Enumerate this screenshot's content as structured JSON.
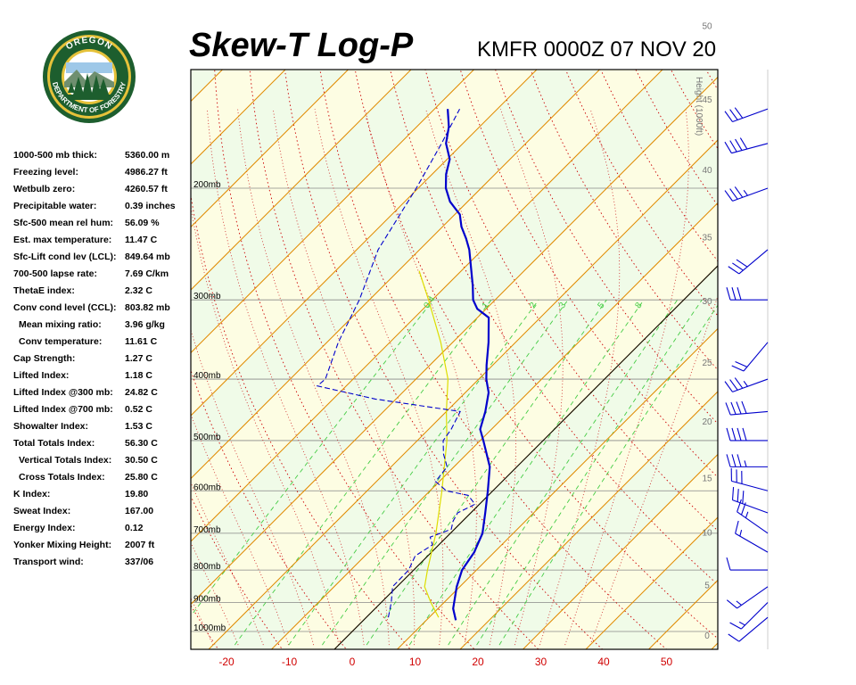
{
  "header": {
    "title": "Skew-T Log-P",
    "station": "KMFR 0000Z 07 NOV 20"
  },
  "logo": {
    "top_text": "OREGON",
    "bottom_text": "DEPARTMENT OF FORESTRY"
  },
  "indices": [
    {
      "label": "1000-500 mb thick:",
      "value": "5360.00 m",
      "indent": false
    },
    {
      "label": "Freezing level:",
      "value": "4986.27 ft",
      "indent": false
    },
    {
      "label": "Wetbulb zero:",
      "value": "4260.57 ft",
      "indent": false
    },
    {
      "label": "Precipitable water:",
      "value": "0.39 inches",
      "indent": false
    },
    {
      "label": "Sfc-500 mean rel hum:",
      "value": "56.09 %",
      "indent": false
    },
    {
      "label": "Est. max temperature:",
      "value": "11.47 C",
      "indent": false
    },
    {
      "label": "Sfc-Lift cond lev (LCL):",
      "value": "849.64 mb",
      "indent": false
    },
    {
      "label": "700-500 lapse rate:",
      "value": "7.69 C/km",
      "indent": false
    },
    {
      "label": "ThetaE index:",
      "value": "2.32 C",
      "indent": false
    },
    {
      "label": "Conv cond level (CCL):",
      "value": "803.82 mb",
      "indent": false
    },
    {
      "label": "Mean mixing ratio:",
      "value": "3.96 g/kg",
      "indent": true
    },
    {
      "label": "Conv temperature:",
      "value": "11.61 C",
      "indent": true
    },
    {
      "label": "Cap Strength:",
      "value": "1.27 C",
      "indent": false
    },
    {
      "label": "Lifted Index:",
      "value": "1.18 C",
      "indent": false
    },
    {
      "label": "Lifted Index @300 mb:",
      "value": "24.82 C",
      "indent": false
    },
    {
      "label": "Lifted Index @700 mb:",
      "value": "0.52 C",
      "indent": false
    },
    {
      "label": "Showalter Index:",
      "value": "1.53 C",
      "indent": false
    },
    {
      "label": "Total Totals Index:",
      "value": "56.30 C",
      "indent": false
    },
    {
      "label": "Vertical Totals Index:",
      "value": "30.50 C",
      "indent": true
    },
    {
      "label": "Cross Totals Index:",
      "value": "25.80 C",
      "indent": true
    },
    {
      "label": "K Index:",
      "value": "19.80",
      "indent": false
    },
    {
      "label": "Sweat Index:",
      "value": "167.00",
      "indent": false
    },
    {
      "label": "Energy Index:",
      "value": "0.12",
      "indent": false
    },
    {
      "label": "Yonker Mixing Height:",
      "value": "2007 ft",
      "indent": false
    },
    {
      "label": "Transport wind:",
      "value": "337/06",
      "indent": false
    }
  ],
  "chart_data": {
    "type": "line",
    "title": "Skew-T Log-P",
    "subtitle": "KMFR 0000Z 07 NOV 20",
    "xlim": [
      -25,
      59
    ],
    "x_ticks": [
      -20,
      -10,
      0,
      10,
      20,
      30,
      40,
      50
    ],
    "pressure_levels": [
      200,
      300,
      400,
      500,
      600,
      700,
      800,
      900,
      1000
    ],
    "pressure_labels": [
      "200mb",
      "300mb",
      "400mb",
      "500mb",
      "600mb",
      "700mb",
      "800mb",
      "900mb",
      "1000mb"
    ],
    "height_axis_label": "Height (1000ft)",
    "height_ticks": [
      "0",
      "5",
      "10",
      "15",
      "20",
      "25",
      "30",
      "35",
      "40",
      "45",
      "50"
    ],
    "mixing_ratio_labels": [
      "0.4",
      "1",
      "2",
      "3",
      "5",
      "8"
    ],
    "colors": {
      "temperature": "#0000cc",
      "dewpoint": "#0000cc",
      "parcel": "#dddd00",
      "isotherm": "#e08a00",
      "dry_adiabat": "#cc0000",
      "moist_adiabat": "#000000",
      "mixing_ratio": "#44cc44",
      "isobar": "#888888",
      "freezing_line": "#000000"
    },
    "series": [
      {
        "name": "Temperature",
        "points": [
          {
            "p": 960,
            "t": 14.7
          },
          {
            "p": 920,
            "t": 12.4
          },
          {
            "p": 850,
            "t": 9.5
          },
          {
            "p": 800,
            "t": 7.7
          },
          {
            "p": 750,
            "t": 6.8
          },
          {
            "p": 700,
            "t": 5.1
          },
          {
            "p": 650,
            "t": 2.3
          },
          {
            "p": 600,
            "t": -0.8
          },
          {
            "p": 550,
            "t": -4.3
          },
          {
            "p": 500,
            "t": -9.5
          },
          {
            "p": 480,
            "t": -11.8
          },
          {
            "p": 450,
            "t": -13.8
          },
          {
            "p": 420,
            "t": -16.3
          },
          {
            "p": 400,
            "t": -18.8
          },
          {
            "p": 380,
            "t": -21.0
          },
          {
            "p": 350,
            "t": -24.3
          },
          {
            "p": 320,
            "t": -28.2
          },
          {
            "p": 310,
            "t": -31.4
          },
          {
            "p": 300,
            "t": -33.5
          },
          {
            "p": 285,
            "t": -35.8
          },
          {
            "p": 270,
            "t": -38.4
          },
          {
            "p": 250,
            "t": -42.1
          },
          {
            "p": 240,
            "t": -44.4
          },
          {
            "p": 230,
            "t": -47.0
          },
          {
            "p": 220,
            "t": -49.2
          },
          {
            "p": 210,
            "t": -52.8
          },
          {
            "p": 200,
            "t": -55.6
          },
          {
            "p": 190,
            "t": -57.8
          },
          {
            "p": 180,
            "t": -59.6
          },
          {
            "p": 170,
            "t": -62.7
          },
          {
            "p": 160,
            "t": -64.9
          },
          {
            "p": 150,
            "t": -67.9
          }
        ]
      },
      {
        "name": "Dewpoint",
        "points": [
          {
            "p": 950,
            "t": 3.5
          },
          {
            "p": 900,
            "t": 1.6
          },
          {
            "p": 850,
            "t": -0.7
          },
          {
            "p": 800,
            "t": -0.8
          },
          {
            "p": 760,
            "t": -2.0
          },
          {
            "p": 730,
            "t": -1.0
          },
          {
            "p": 710,
            "t": -2.6
          },
          {
            "p": 690,
            "t": -0.5
          },
          {
            "p": 670,
            "t": -1.5
          },
          {
            "p": 650,
            "t": -2.1
          },
          {
            "p": 630,
            "t": -0.7
          },
          {
            "p": 610,
            "t": -3.2
          },
          {
            "p": 600,
            "t": -7.4
          },
          {
            "p": 580,
            "t": -10.6
          },
          {
            "p": 550,
            "t": -11.1
          },
          {
            "p": 525,
            "t": -13.7
          },
          {
            "p": 500,
            "t": -15.9
          },
          {
            "p": 480,
            "t": -16.4
          },
          {
            "p": 450,
            "t": -17.8
          },
          {
            "p": 430,
            "t": -33.3
          },
          {
            "p": 410,
            "t": -44.6
          },
          {
            "p": 400,
            "t": -44.4
          },
          {
            "p": 350,
            "t": -48.2
          },
          {
            "p": 300,
            "t": -51.6
          },
          {
            "p": 250,
            "t": -56.6
          },
          {
            "p": 200,
            "t": -60.3
          },
          {
            "p": 170,
            "t": -63.4
          },
          {
            "p": 150,
            "t": -66.0
          }
        ]
      },
      {
        "name": "Parcel",
        "points": [
          {
            "p": 950,
            "t": 11.5
          },
          {
            "p": 900,
            "t": 7.9
          },
          {
            "p": 850,
            "t": 4.4
          },
          {
            "p": 800,
            "t": 2.2
          },
          {
            "p": 700,
            "t": -2.3
          },
          {
            "p": 600,
            "t": -8.1
          },
          {
            "p": 500,
            "t": -15.3
          },
          {
            "p": 450,
            "t": -20.0
          },
          {
            "p": 400,
            "t": -24.9
          },
          {
            "p": 350,
            "t": -31.9
          },
          {
            "p": 300,
            "t": -40.6
          },
          {
            "p": 270,
            "t": -46.7
          }
        ]
      }
    ],
    "wind_barbs": [
      {
        "p": 950,
        "dir": 230,
        "spd": 10
      },
      {
        "p": 900,
        "dir": 225,
        "spd": 15
      },
      {
        "p": 850,
        "dir": 235,
        "spd": 15
      },
      {
        "p": 800,
        "dir": 270,
        "spd": 10
      },
      {
        "p": 750,
        "dir": 300,
        "spd": 15
      },
      {
        "p": 700,
        "dir": 305,
        "spd": 25
      },
      {
        "p": 650,
        "dir": 290,
        "spd": 30
      },
      {
        "p": 600,
        "dir": 285,
        "spd": 30
      },
      {
        "p": 550,
        "dir": 270,
        "spd": 35
      },
      {
        "p": 500,
        "dir": 270,
        "spd": 40
      },
      {
        "p": 450,
        "dir": 265,
        "spd": 40
      },
      {
        "p": 400,
        "dir": 250,
        "spd": 35
      },
      {
        "p": 350,
        "dir": 220,
        "spd": 20
      },
      {
        "p": 300,
        "dir": 270,
        "spd": 30
      },
      {
        "p": 250,
        "dir": 230,
        "spd": 30
      },
      {
        "p": 200,
        "dir": 250,
        "spd": 35
      },
      {
        "p": 170,
        "dir": 255,
        "spd": 40
      },
      {
        "p": 150,
        "dir": 250,
        "spd": 30
      }
    ]
  }
}
